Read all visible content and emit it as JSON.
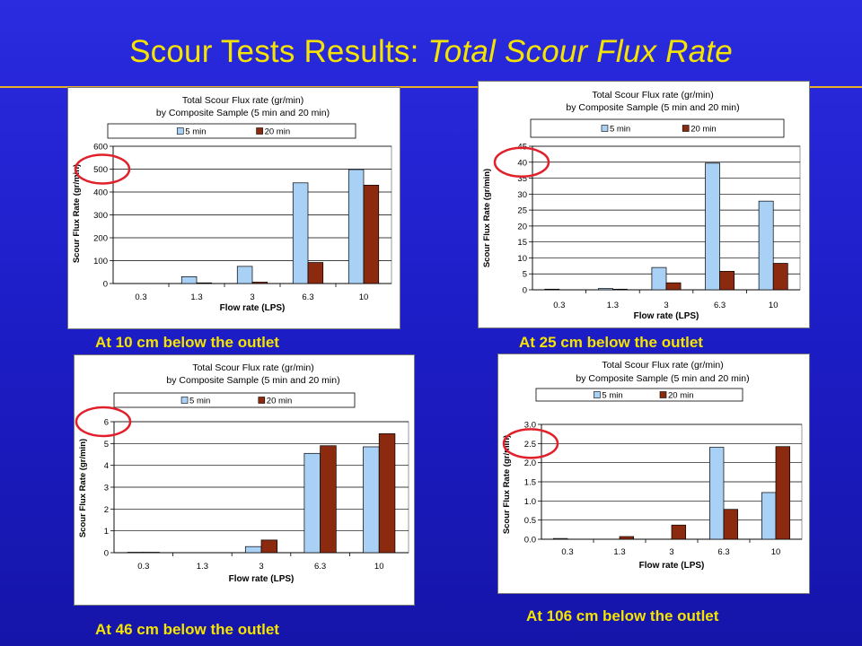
{
  "slide": {
    "title_plain": "Scour Tests Results: ",
    "title_italic": "Total Scour Flux Rate",
    "accent_color": "#f5e400",
    "circle_color": "#e0202a"
  },
  "colors": {
    "series_5min": "#a9d0f5",
    "series_20min": "#8b2a0f"
  },
  "chart_data": [
    {
      "type": "bar",
      "caption": "At 10 cm below the outlet",
      "title": "Total Scour Flux rate (gr/min)",
      "subtitle": "by Composite Sample (5 min and 20 min)",
      "xlabel": "Flow rate (LPS)",
      "ylabel": "Scour Flux Rate (gr/min)",
      "categories": [
        "0.3",
        "1.3",
        "3",
        "6.3",
        "10"
      ],
      "series": [
        {
          "name": "5 min",
          "values": [
            0,
            30,
            75,
            440,
            498
          ]
        },
        {
          "name": "20 min",
          "values": [
            0,
            3,
            6,
            92,
            430
          ]
        }
      ],
      "ylim": [
        0,
        600
      ],
      "yticks": [
        "0",
        "100",
        "200",
        "300",
        "400",
        "500",
        "600"
      ],
      "grid": true,
      "legend": "top",
      "highlight_tick": "500"
    },
    {
      "type": "bar",
      "caption": "At 25 cm below the outlet",
      "title": "Total Scour Flux rate (gr/min)",
      "subtitle": "by Composite Sample (5 min and 20 min)",
      "xlabel": "Flow rate (LPS)",
      "ylabel": "Scour Flux Rate (gr/min)",
      "categories": [
        "0.3",
        "1.3",
        "3",
        "6.3",
        "10"
      ],
      "series": [
        {
          "name": "5 min",
          "values": [
            0.2,
            0.4,
            7,
            39.7,
            27.8
          ]
        },
        {
          "name": "20 min",
          "values": [
            0,
            0.2,
            2.2,
            5.8,
            8.3
          ]
        }
      ],
      "ylim": [
        0,
        45
      ],
      "yticks": [
        "0",
        "5",
        "10",
        "15",
        "20",
        "25",
        "30",
        "35",
        "40",
        "45"
      ],
      "grid": true,
      "legend": "top",
      "highlight_tick": "40"
    },
    {
      "type": "bar",
      "caption": "At 46 cm below the outlet",
      "title": "Total Scour Flux rate (gr/min)",
      "subtitle": "by Composite Sample (5 min and 20 min)",
      "xlabel": "Flow rate (LPS)",
      "ylabel": "Scour Flux Rate (gr/min)",
      "categories": [
        "0.3",
        "1.3",
        "3",
        "6.3",
        "10"
      ],
      "series": [
        {
          "name": "5 min",
          "values": [
            0.02,
            0,
            0.28,
            4.55,
            4.85
          ]
        },
        {
          "name": "20 min",
          "values": [
            0.02,
            0,
            0.58,
            4.9,
            5.45
          ]
        }
      ],
      "ylim": [
        0,
        6
      ],
      "yticks": [
        "0",
        "1",
        "2",
        "3",
        "4",
        "5",
        "6"
      ],
      "grid": true,
      "legend": "top",
      "highlight_tick": "6"
    },
    {
      "type": "bar",
      "caption": "At 106 cm below the outlet",
      "title": "Total Scour Flux rate (gr/min)",
      "subtitle": "by Composite Sample (5 min and 20 min)",
      "xlabel": "Flow rate (LPS)",
      "ylabel": "Scour Flux Rate (gr/min)",
      "categories": [
        "0.3",
        "1.3",
        "3",
        "6.3",
        "10"
      ],
      "series": [
        {
          "name": "5 min",
          "values": [
            0.02,
            0,
            0,
            2.4,
            1.22
          ]
        },
        {
          "name": "20 min",
          "values": [
            0,
            0.07,
            0.37,
            0.78,
            2.42
          ]
        }
      ],
      "ylim": [
        0,
        3
      ],
      "yticks": [
        "0.0",
        "0.5",
        "1.0",
        "1.5",
        "2.0",
        "2.5",
        "3.0"
      ],
      "grid": true,
      "legend": "top",
      "highlight_tick": "2.5"
    }
  ]
}
